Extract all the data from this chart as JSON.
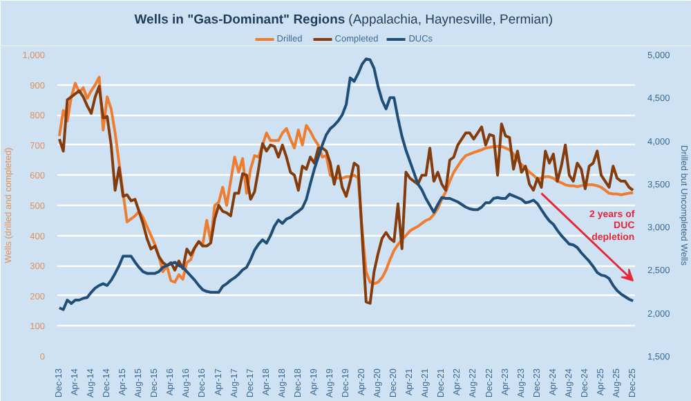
{
  "chart_data": {
    "type": "line",
    "title": "Wells in \"Gas-Dominant\" Regions",
    "subtitle": "(Appalachia, Haynesville, Permian)",
    "ylabel": "Wells (drilled and completed)",
    "y2label": "Drilled but Uncompleted Wells",
    "x": [
      "2013-12",
      "2014-01",
      "2014-02",
      "2014-03",
      "2014-04",
      "2014-05",
      "2014-06",
      "2014-07",
      "2014-08",
      "2014-09",
      "2014-10",
      "2014-11",
      "2014-12",
      "2015-01",
      "2015-02",
      "2015-03",
      "2015-04",
      "2015-05",
      "2015-06",
      "2015-07",
      "2015-08",
      "2015-09",
      "2015-10",
      "2015-11",
      "2015-12",
      "2016-01",
      "2016-02",
      "2016-03",
      "2016-04",
      "2016-05",
      "2016-06",
      "2016-07",
      "2016-08",
      "2016-09",
      "2016-10",
      "2016-11",
      "2016-12",
      "2017-01",
      "2017-02",
      "2017-03",
      "2017-04",
      "2017-05",
      "2017-06",
      "2017-07",
      "2017-08",
      "2017-09",
      "2017-10",
      "2017-11",
      "2017-12",
      "2018-01",
      "2018-02",
      "2018-03",
      "2018-04",
      "2018-05",
      "2018-06",
      "2018-07",
      "2018-08",
      "2018-09",
      "2018-10",
      "2018-11",
      "2018-12",
      "2019-01",
      "2019-02",
      "2019-03",
      "2019-04",
      "2019-05",
      "2019-06",
      "2019-07",
      "2019-08",
      "2019-09",
      "2019-10",
      "2019-11",
      "2019-12",
      "2020-01",
      "2020-02",
      "2020-03",
      "2020-04",
      "2020-05",
      "2020-06",
      "2020-07",
      "2020-08",
      "2020-09",
      "2020-10",
      "2020-11",
      "2020-12",
      "2021-01",
      "2021-02",
      "2021-03",
      "2021-04",
      "2021-05",
      "2021-06",
      "2021-07",
      "2021-08",
      "2021-09",
      "2021-10",
      "2021-11",
      "2021-12",
      "2022-01",
      "2022-02",
      "2022-03",
      "2022-04",
      "2022-05",
      "2022-06",
      "2022-07",
      "2022-08",
      "2022-09",
      "2022-10",
      "2022-11",
      "2022-12",
      "2023-01",
      "2023-02",
      "2023-03",
      "2023-04",
      "2023-05",
      "2023-06",
      "2023-07",
      "2023-08",
      "2023-09",
      "2023-10",
      "2023-11",
      "2023-12",
      "2024-01",
      "2024-02",
      "2024-03",
      "2024-04",
      "2024-05",
      "2024-06",
      "2024-07",
      "2024-08",
      "2024-09",
      "2024-10",
      "2024-11",
      "2024-12",
      "2025-01",
      "2025-02",
      "2025-03",
      "2025-04",
      "2025-05",
      "2025-06",
      "2025-07",
      "2025-08",
      "2025-09",
      "2025-10",
      "2025-11",
      "2025-12"
    ],
    "series": [
      {
        "name": "Drilled",
        "color": "#ed7d31",
        "values": [
          730,
          815,
          780,
          860,
          905,
          875,
          890,
          855,
          880,
          900,
          925,
          750,
          860,
          820,
          740,
          640,
          540,
          445,
          455,
          465,
          480,
          460,
          430,
          400,
          370,
          330,
          280,
          300,
          250,
          245,
          270,
          255,
          310,
          320,
          360,
          380,
          370,
          450,
          380,
          500,
          510,
          560,
          500,
          580,
          660,
          610,
          655,
          540,
          620,
          665,
          660,
          700,
          740,
          715,
          715,
          715,
          740,
          755,
          720,
          690,
          750,
          700,
          765,
          745,
          720,
          700,
          660,
          665,
          600,
          590,
          590,
          590,
          595,
          595,
          600,
          590,
          420,
          280,
          245,
          240,
          245,
          260,
          285,
          320,
          350,
          370,
          386,
          400,
          415,
          423,
          430,
          440,
          450,
          455,
          470,
          490,
          520,
          545,
          580,
          610,
          630,
          650,
          665,
          670,
          675,
          680,
          684,
          690,
          692,
          695,
          696,
          695,
          690,
          684,
          670,
          650,
          635,
          624,
          610,
          600,
          587,
          590,
          595,
          595,
          590,
          580,
          575,
          568,
          565,
          565,
          562,
          565,
          568,
          568,
          568,
          565,
          560,
          550,
          540,
          538,
          538,
          535,
          538,
          540,
          542
        ]
      },
      {
        "name": "Completed",
        "color": "#843c0c",
        "values": [
          720,
          680,
          850,
          860,
          870,
          880,
          860,
          830,
          805,
          860,
          895,
          790,
          795,
          700,
          550,
          625,
          530,
          535,
          515,
          520,
          480,
          440,
          390,
          355,
          365,
          330,
          310,
          300,
          310,
          285,
          315,
          290,
          355,
          335,
          360,
          380,
          365,
          365,
          375,
          455,
          500,
          480,
          475,
          465,
          540,
          540,
          605,
          600,
          520,
          545,
          620,
          705,
          680,
          700,
          695,
          660,
          700,
          660,
          610,
          600,
          550,
          630,
          620,
          660,
          640,
          690,
          690,
          680,
          640,
          570,
          630,
          560,
          530,
          580,
          640,
          630,
          400,
          180,
          175,
          280,
          340,
          390,
          410,
          390,
          380,
          505,
          356,
          610,
          590,
          580,
          570,
          600,
          600,
          690,
          580,
          610,
          570,
          550,
          650,
          660,
          700,
          720,
          740,
          740,
          720,
          740,
          760,
          700,
          735,
          730,
          600,
          770,
          730,
          725,
          620,
          680,
          610,
          630,
          570,
          550,
          590,
          560,
          680,
          640,
          670,
          580,
          630,
          700,
          600,
          580,
          640,
          620,
          555,
          630,
          640,
          680,
          600,
          580,
          560,
          630,
          590,
          580,
          580,
          560,
          550
        ]
      },
      {
        "name": "DUCs",
        "color": "#1f4e79",
        "axis": "y2",
        "values": [
          2060,
          2040,
          2150,
          2110,
          2150,
          2150,
          2170,
          2180,
          2240,
          2290,
          2320,
          2340,
          2320,
          2380,
          2460,
          2550,
          2660,
          2660,
          2660,
          2590,
          2530,
          2480,
          2460,
          2460,
          2460,
          2480,
          2530,
          2550,
          2570,
          2590,
          2550,
          2530,
          2480,
          2430,
          2380,
          2320,
          2270,
          2250,
          2240,
          2240,
          2240,
          2310,
          2340,
          2380,
          2410,
          2450,
          2500,
          2530,
          2620,
          2730,
          2800,
          2850,
          2810,
          2900,
          3010,
          3080,
          3040,
          3090,
          3110,
          3150,
          3180,
          3220,
          3320,
          3500,
          3670,
          3810,
          3950,
          4070,
          4140,
          4180,
          4230,
          4300,
          4420,
          4730,
          4690,
          4780,
          4890,
          4950,
          4940,
          4840,
          4630,
          4470,
          4370,
          4500,
          4500,
          4260,
          4050,
          3890,
          3760,
          3630,
          3500,
          3430,
          3330,
          3250,
          3170,
          3260,
          3340,
          3330,
          3330,
          3310,
          3290,
          3260,
          3230,
          3210,
          3200,
          3200,
          3230,
          3280,
          3280,
          3330,
          3340,
          3330,
          3330,
          3380,
          3360,
          3340,
          3320,
          3280,
          3290,
          3310,
          3270,
          3200,
          3130,
          3070,
          3030,
          2960,
          2900,
          2850,
          2800,
          2790,
          2760,
          2700,
          2650,
          2600,
          2540,
          2470,
          2440,
          2430,
          2400,
          2320,
          2260,
          2220,
          2190,
          2160,
          2140
        ]
      }
    ],
    "xlim": [
      "2013-12",
      "2025-12"
    ],
    "xticks": [
      {
        "value": "2013-12",
        "label": "Dec-13"
      },
      {
        "value": "2014-04",
        "label": "Apr-14"
      },
      {
        "value": "2014-08",
        "label": "Aug-14"
      },
      {
        "value": "2014-12",
        "label": "Dec-14"
      },
      {
        "value": "2015-04",
        "label": "Apr-15"
      },
      {
        "value": "2015-08",
        "label": "Aug-15"
      },
      {
        "value": "2015-12",
        "label": "Dec-15"
      },
      {
        "value": "2016-04",
        "label": "Apr-16"
      },
      {
        "value": "2016-08",
        "label": "Aug-16"
      },
      {
        "value": "2016-12",
        "label": "Dec-16"
      },
      {
        "value": "2017-04",
        "label": "Apr-17"
      },
      {
        "value": "2017-08",
        "label": "Aug-17"
      },
      {
        "value": "2017-12",
        "label": "Dec-17"
      },
      {
        "value": "2018-04",
        "label": "Apr-18"
      },
      {
        "value": "2018-08",
        "label": "Aug-18"
      },
      {
        "value": "2018-12",
        "label": "Dec-18"
      },
      {
        "value": "2019-04",
        "label": "Apr-19"
      },
      {
        "value": "2019-08",
        "label": "Aug-19"
      },
      {
        "value": "2019-12",
        "label": "Dec-19"
      },
      {
        "value": "2020-04",
        "label": "Apr-20"
      },
      {
        "value": "2020-08",
        "label": "Aug-20"
      },
      {
        "value": "2020-12",
        "label": "Dec-20"
      },
      {
        "value": "2021-04",
        "label": "Apr-21"
      },
      {
        "value": "2021-08",
        "label": "Aug-21"
      },
      {
        "value": "2021-12",
        "label": "Dec-21"
      },
      {
        "value": "2022-04",
        "label": "Apr-22"
      },
      {
        "value": "2022-08",
        "label": "Aug-22"
      },
      {
        "value": "2022-12",
        "label": "Dec-22"
      },
      {
        "value": "2023-04",
        "label": "Apr-23"
      },
      {
        "value": "2023-08",
        "label": "Aug-23"
      },
      {
        "value": "2023-12",
        "label": "Dec-23"
      },
      {
        "value": "2024-04",
        "label": "Apr-24"
      },
      {
        "value": "2024-08",
        "label": "Aug-24"
      },
      {
        "value": "2024-12",
        "label": "Dec-24"
      },
      {
        "value": "2025-04",
        "label": "Apr-25"
      },
      {
        "value": "2025-08",
        "label": "Aug-25"
      },
      {
        "value": "2025-12",
        "label": "Dec-25"
      }
    ],
    "ylim": [
      0,
      1000
    ],
    "yticks": [
      0,
      100,
      200,
      300,
      400,
      500,
      600,
      700,
      800,
      900,
      {
        "value": 1000,
        "label": "1,000"
      }
    ],
    "y2lim": [
      1500,
      5000
    ],
    "y2ticks": [
      {
        "value": 1500,
        "label": "1,500"
      },
      {
        "value": 2000,
        "label": "2,000"
      },
      {
        "value": 2500,
        "label": "2,500"
      },
      {
        "value": 3000,
        "label": "3,000"
      },
      {
        "value": 3500,
        "label": "3,500"
      },
      {
        "value": 4000,
        "label": "4,000"
      },
      {
        "value": 4500,
        "label": "4,500"
      },
      {
        "value": 5000,
        "label": "5,000"
      }
    ],
    "annotations": [
      "2 years of DUC depletion"
    ],
    "grid": "y",
    "legend": "top",
    "marker": "none",
    "line_style": "solid"
  }
}
